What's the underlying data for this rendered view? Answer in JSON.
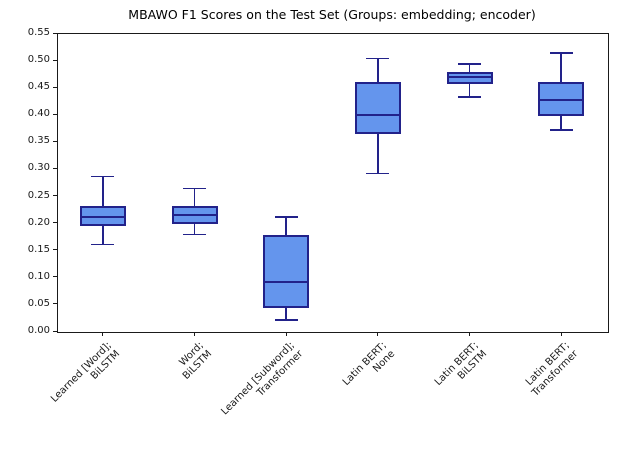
{
  "chart_data": {
    "type": "boxplot",
    "title": "MBAWO F1 Scores on the Test Set (Groups: embedding; encoder)",
    "xlabel": "",
    "ylabel": "",
    "ylim": [
      0.0,
      0.55
    ],
    "grid": false,
    "ytick_labels": [
      "0.00",
      "0.05",
      "0.10",
      "0.15",
      "0.20",
      "0.25",
      "0.30",
      "0.35",
      "0.40",
      "0.45",
      "0.50",
      "0.55"
    ],
    "categories": [
      "Learned [Word];\nBiLSTM",
      "Word;\nBiLSTM",
      "Learned [Subword];\nTransformer",
      "Latin BERT;\nNone",
      "Latin BERT;\nBiLSTM",
      "Latin BERT;\nTransformer"
    ],
    "boxes": [
      {
        "label": "Learned [Word];\nBiLSTM",
        "whisker_low": 0.16,
        "q1": 0.193,
        "median": 0.21,
        "q3": 0.23,
        "whisker_high": 0.285
      },
      {
        "label": "Word;\nBiLSTM",
        "whisker_low": 0.178,
        "q1": 0.197,
        "median": 0.215,
        "q3": 0.23,
        "whisker_high": 0.263
      },
      {
        "label": "Learned [Subword];\nTransformer",
        "whisker_low": 0.02,
        "q1": 0.042,
        "median": 0.09,
        "q3": 0.178,
        "whisker_high": 0.21
      },
      {
        "label": "Latin BERT;\nNone",
        "whisker_low": 0.291,
        "q1": 0.363,
        "median": 0.398,
        "q3": 0.46,
        "whisker_high": 0.503
      },
      {
        "label": "Latin BERT;\nBiLSTM",
        "whisker_low": 0.432,
        "q1": 0.455,
        "median": 0.469,
        "q3": 0.478,
        "whisker_high": 0.493
      },
      {
        "label": "Latin BERT;\nTransformer",
        "whisker_low": 0.371,
        "q1": 0.397,
        "median": 0.427,
        "q3": 0.46,
        "whisker_high": 0.513
      }
    ],
    "colors": {
      "box_fill": "#6495ed",
      "box_edge": "#22228a",
      "axis": "#1a1a1a",
      "text": "#000000"
    }
  }
}
